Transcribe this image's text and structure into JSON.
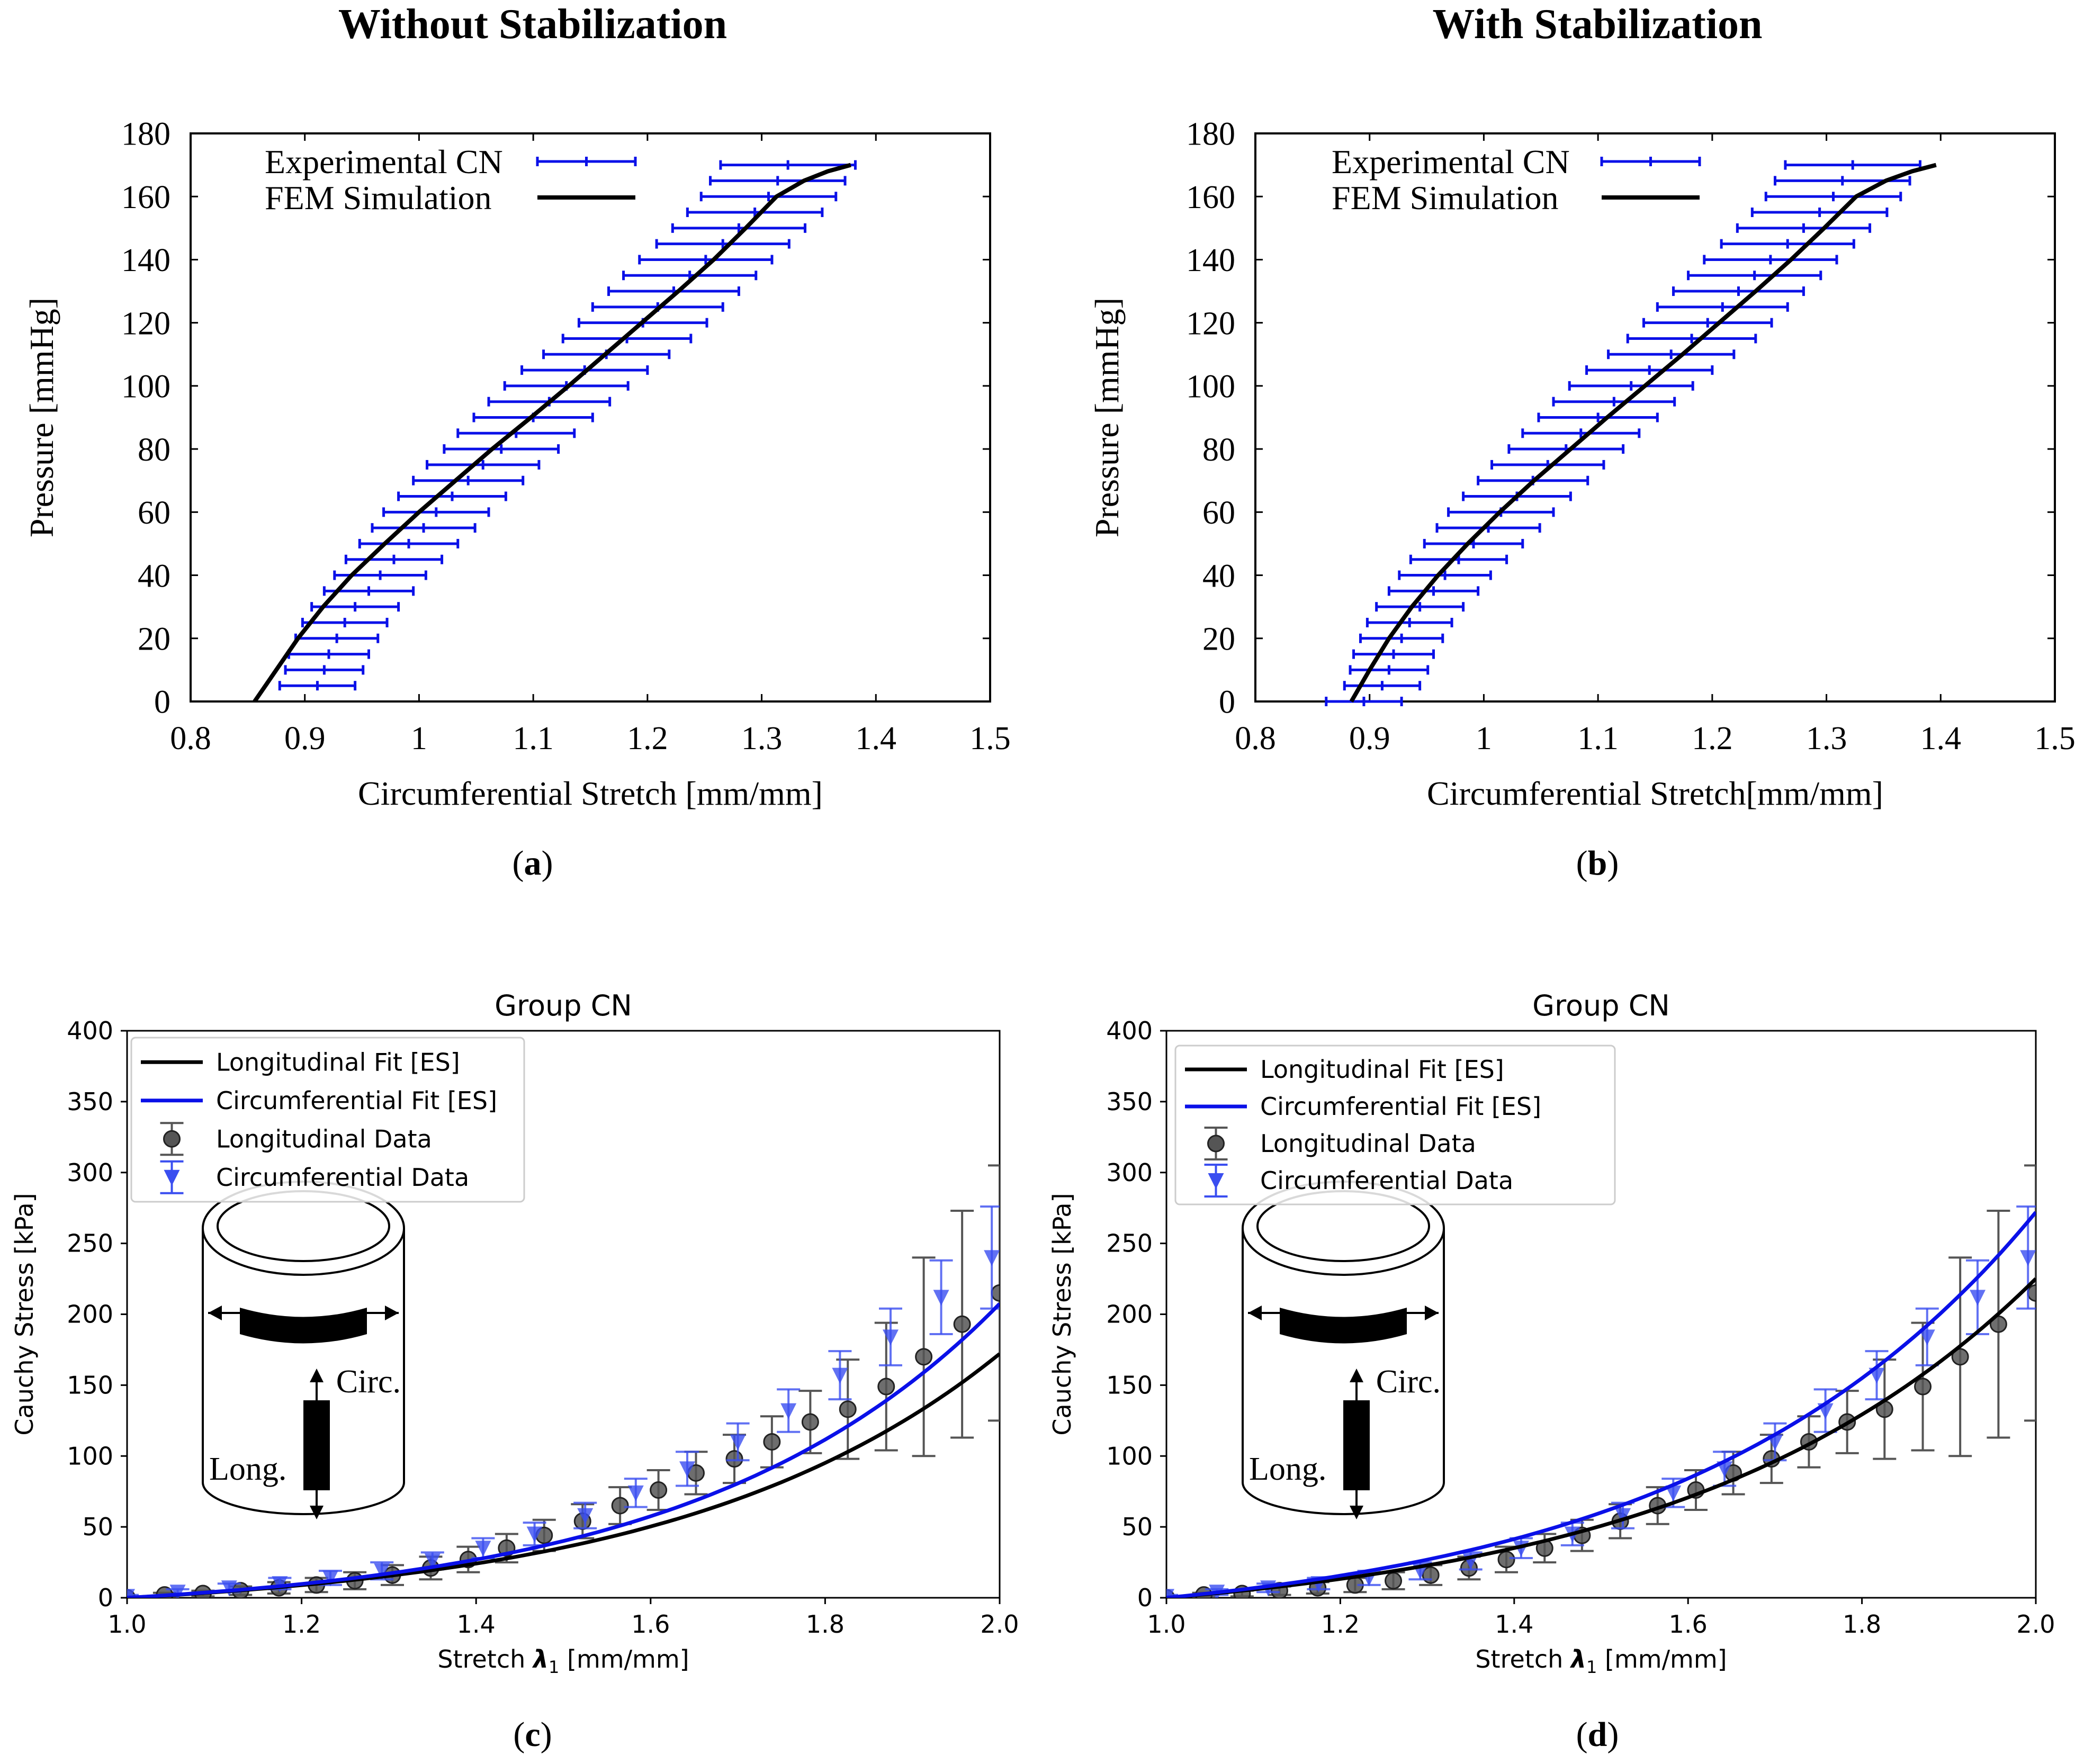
{
  "page": {
    "heading_left": "Without Stabilization",
    "heading_right": "With Stabilization"
  },
  "colors": {
    "experimental": "#0a10e8",
    "fem": "#000000",
    "long_data": "#555555",
    "circ_fit": "#0a10e8",
    "circ_data": "#3a4ef0"
  },
  "chart_data": [
    {
      "id": "a",
      "type": "line",
      "panel_label": "a",
      "xlabel": "Circumferential Stretch  [mm/mm]",
      "ylabel": "Pressure  [mmHg]",
      "xlim": [
        0.8,
        1.5
      ],
      "ylim": [
        0,
        180
      ],
      "xticks": [
        0.8,
        0.9,
        1,
        1.1,
        1.2,
        1.3,
        1.4,
        1.5
      ],
      "yticks": [
        0,
        20,
        40,
        60,
        80,
        100,
        120,
        140,
        160,
        180
      ],
      "xtick_labels": [
        "0.8",
        "0.9",
        "1",
        "1.1",
        "1.2",
        "1.3",
        "1.4",
        "1.5"
      ],
      "ytick_labels": [
        "0",
        "20",
        "40",
        "60",
        "80",
        "100",
        "120",
        "140",
        "160",
        "180"
      ],
      "legend": [
        "Experimental CN",
        "FEM Simulation"
      ],
      "legend_position": "top-left",
      "series": [
        {
          "name": "Experimental CN",
          "kind": "xerrorbar",
          "points": [
            [
              0.911,
              5,
              0.033
            ],
            [
              0.917,
              10,
              0.034
            ],
            [
              0.921,
              15,
              0.035
            ],
            [
              0.928,
              20,
              0.036
            ],
            [
              0.935,
              25,
              0.037
            ],
            [
              0.944,
              30,
              0.038
            ],
            [
              0.956,
              35,
              0.039
            ],
            [
              0.966,
              40,
              0.04
            ],
            [
              0.978,
              45,
              0.042
            ],
            [
              0.991,
              50,
              0.043
            ],
            [
              1.004,
              55,
              0.045
            ],
            [
              1.015,
              60,
              0.046
            ],
            [
              1.029,
              65,
              0.047
            ],
            [
              1.043,
              70,
              0.048
            ],
            [
              1.056,
              75,
              0.049
            ],
            [
              1.072,
              80,
              0.05
            ],
            [
              1.085,
              85,
              0.051
            ],
            [
              1.1,
              90,
              0.052
            ],
            [
              1.114,
              95,
              0.053
            ],
            [
              1.129,
              100,
              0.054
            ],
            [
              1.145,
              105,
              0.055
            ],
            [
              1.164,
              110,
              0.055
            ],
            [
              1.182,
              115,
              0.056
            ],
            [
              1.196,
              120,
              0.056
            ],
            [
              1.209,
              125,
              0.057
            ],
            [
              1.223,
              130,
              0.057
            ],
            [
              1.237,
              135,
              0.058
            ],
            [
              1.251,
              140,
              0.058
            ],
            [
              1.266,
              145,
              0.058
            ],
            [
              1.28,
              150,
              0.058
            ],
            [
              1.294,
              155,
              0.059
            ],
            [
              1.306,
              160,
              0.059
            ],
            [
              1.314,
              165,
              0.059
            ],
            [
              1.323,
              170,
              0.059
            ]
          ]
        },
        {
          "name": "FEM Simulation",
          "kind": "line",
          "x": [
            0.856,
            0.875,
            0.894,
            0.916,
            0.941,
            0.97,
            1.0,
            1.032,
            1.064,
            1.098,
            1.131,
            1.163,
            1.195,
            1.227,
            1.258,
            1.286,
            1.313,
            1.337,
            1.358,
            1.378
          ],
          "y": [
            0,
            10,
            20,
            30,
            40,
            50,
            60,
            70,
            80,
            90,
            100,
            110,
            120,
            130,
            140,
            150,
            160,
            165,
            168,
            170
          ]
        }
      ]
    },
    {
      "id": "b",
      "type": "line",
      "panel_label": "b",
      "xlabel": "Circumferential Stretch[mm/mm]",
      "ylabel": "Pressure  [mmHg]",
      "xlim": [
        0.8,
        1.5
      ],
      "ylim": [
        0,
        180
      ],
      "xticks": [
        0.8,
        0.9,
        1,
        1.1,
        1.2,
        1.3,
        1.4,
        1.5
      ],
      "yticks": [
        0,
        20,
        40,
        60,
        80,
        100,
        120,
        140,
        160,
        180
      ],
      "xtick_labels": [
        "0.8",
        "0.9",
        "1",
        "1.1",
        "1.2",
        "1.3",
        "1.4",
        "1.5"
      ],
      "ytick_labels": [
        "0",
        "20",
        "40",
        "60",
        "80",
        "100",
        "120",
        "140",
        "160",
        "180"
      ],
      "legend": [
        "Experimental CN",
        "FEM Simulation"
      ],
      "legend_position": "top-left",
      "series": [
        {
          "name": "Experimental CN",
          "kind": "xerrorbar",
          "points": [
            [
              0.895,
              0,
              0.033
            ],
            [
              0.911,
              5,
              0.033
            ],
            [
              0.917,
              10,
              0.034
            ],
            [
              0.921,
              15,
              0.035
            ],
            [
              0.928,
              20,
              0.036
            ],
            [
              0.935,
              25,
              0.037
            ],
            [
              0.944,
              30,
              0.038
            ],
            [
              0.956,
              35,
              0.039
            ],
            [
              0.966,
              40,
              0.04
            ],
            [
              0.978,
              45,
              0.042
            ],
            [
              0.991,
              50,
              0.043
            ],
            [
              1.004,
              55,
              0.045
            ],
            [
              1.015,
              60,
              0.046
            ],
            [
              1.029,
              65,
              0.047
            ],
            [
              1.043,
              70,
              0.048
            ],
            [
              1.056,
              75,
              0.049
            ],
            [
              1.072,
              80,
              0.05
            ],
            [
              1.085,
              85,
              0.051
            ],
            [
              1.1,
              90,
              0.052
            ],
            [
              1.114,
              95,
              0.053
            ],
            [
              1.129,
              100,
              0.054
            ],
            [
              1.145,
              105,
              0.055
            ],
            [
              1.164,
              110,
              0.055
            ],
            [
              1.182,
              115,
              0.056
            ],
            [
              1.196,
              120,
              0.056
            ],
            [
              1.209,
              125,
              0.057
            ],
            [
              1.223,
              130,
              0.057
            ],
            [
              1.237,
              135,
              0.058
            ],
            [
              1.251,
              140,
              0.058
            ],
            [
              1.266,
              145,
              0.058
            ],
            [
              1.28,
              150,
              0.058
            ],
            [
              1.294,
              155,
              0.059
            ],
            [
              1.306,
              160,
              0.059
            ],
            [
              1.314,
              165,
              0.059
            ],
            [
              1.323,
              170,
              0.059
            ]
          ]
        },
        {
          "name": "FEM Simulation",
          "kind": "line",
          "x": [
            0.884,
            0.9,
            0.917,
            0.937,
            0.96,
            0.986,
            1.014,
            1.044,
            1.076,
            1.108,
            1.141,
            1.174,
            1.206,
            1.238,
            1.269,
            1.298,
            1.326,
            1.352,
            1.375,
            1.396
          ],
          "y": [
            0,
            10,
            20,
            30,
            40,
            50,
            60,
            70,
            80,
            90,
            100,
            110,
            120,
            130,
            140,
            150,
            160,
            165,
            168,
            170
          ]
        }
      ]
    },
    {
      "id": "c",
      "type": "line",
      "panel_label": "c",
      "title": "Group CN",
      "xlabel_prefix": "Stretch ",
      "xlabel_symbol": "λ",
      "xlabel_sub": "1",
      "xlabel_suffix": " [mm/mm]",
      "ylabel": "Cauchy Stress [kPa]",
      "xlim": [
        1.0,
        2.0
      ],
      "ylim": [
        0,
        400
      ],
      "xticks": [
        1.0,
        1.2,
        1.4,
        1.6,
        1.8,
        2.0
      ],
      "yticks": [
        0,
        50,
        100,
        150,
        200,
        250,
        300,
        350,
        400
      ],
      "xtick_labels": [
        "1.0",
        "1.2",
        "1.4",
        "1.6",
        "1.8",
        "2.0"
      ],
      "ytick_labels": [
        "0",
        "50",
        "100",
        "150",
        "200",
        "250",
        "300",
        "350",
        "400"
      ],
      "legend": [
        "Longitudinal Fit [ES]",
        "Circumferential Fit [ES]",
        "Longitudinal Data",
        "Circumferential Data"
      ],
      "legend_position": "top-left",
      "inset_labels": {
        "circ": "Circ.",
        "long": "Long."
      },
      "series": [
        {
          "name": "Longitudinal Fit [ES]",
          "kind": "curve",
          "a": 12.4,
          "b": 2.7
        },
        {
          "name": "Circumferential Fit [ES]",
          "kind": "curve",
          "a": 12.6,
          "b": 2.86
        },
        {
          "name": "Longitudinal Data",
          "kind": "yerrorbar",
          "x": [
            1.0,
            1.043,
            1.087,
            1.13,
            1.174,
            1.217,
            1.261,
            1.304,
            1.348,
            1.391,
            1.435,
            1.478,
            1.522,
            1.565,
            1.609,
            1.652,
            1.696,
            1.739,
            1.783,
            1.826,
            1.87,
            1.913,
            1.957,
            2.0
          ],
          "y": [
            0,
            2,
            3,
            5,
            7,
            9,
            12,
            16,
            21,
            27,
            35,
            44,
            54,
            65,
            76,
            88,
            98,
            110,
            124,
            133,
            149,
            170,
            193,
            215
          ],
          "err": [
            1,
            1.5,
            2,
            3,
            4,
            5,
            6,
            7,
            8,
            9,
            10,
            11,
            12,
            13,
            14,
            15,
            17,
            18,
            22,
            35,
            45,
            70,
            80,
            90
          ]
        },
        {
          "name": "Circumferential Data",
          "kind": "yerrorbar",
          "x": [
            1.0,
            1.058,
            1.117,
            1.175,
            1.233,
            1.292,
            1.35,
            1.408,
            1.467,
            1.525,
            1.583,
            1.642,
            1.7,
            1.758,
            1.817,
            1.875,
            1.933,
            1.991
          ],
          "y": [
            1,
            4,
            7,
            10,
            14,
            19,
            26,
            35,
            45,
            58,
            74,
            91,
            110,
            132,
            157,
            184,
            212,
            240
          ],
          "err": [
            1,
            2,
            3,
            4,
            5,
            6,
            6,
            7,
            8,
            9,
            10,
            12,
            13,
            15,
            17,
            20,
            26,
            36
          ]
        }
      ]
    },
    {
      "id": "d",
      "type": "line",
      "panel_label": "d",
      "title": "Group CN",
      "xlabel_prefix": "Stretch ",
      "xlabel_symbol": "λ",
      "xlabel_sub": "1",
      "xlabel_suffix": " [mm/mm]",
      "ylabel": "Cauchy Stress [kPa]",
      "xlim": [
        1.0,
        2.0
      ],
      "ylim": [
        0,
        400
      ],
      "xticks": [
        1.0,
        1.2,
        1.4,
        1.6,
        1.8,
        2.0
      ],
      "yticks": [
        0,
        50,
        100,
        150,
        200,
        250,
        300,
        350,
        400
      ],
      "xtick_labels": [
        "1.0",
        "1.2",
        "1.4",
        "1.6",
        "1.8",
        "2.0"
      ],
      "ytick_labels": [
        "0",
        "50",
        "100",
        "150",
        "200",
        "250",
        "300",
        "350",
        "400"
      ],
      "legend": [
        "Longitudinal Fit [ES]",
        "Circumferential Fit [ES]",
        "Longitudinal Data",
        "Circumferential Data"
      ],
      "legend_position": "top-left",
      "inset_labels": {
        "circ": "Circ.",
        "long": "Long."
      },
      "series": [
        {
          "name": "Longitudinal Fit [ES]",
          "kind": "curve",
          "a": 20.8,
          "b": 2.47
        },
        {
          "name": "Circumferential Fit [ES]",
          "kind": "curve",
          "a": 23.8,
          "b": 2.52
        },
        {
          "name": "Longitudinal Data",
          "kind": "yerrorbar",
          "x": [
            1.0,
            1.043,
            1.087,
            1.13,
            1.174,
            1.217,
            1.261,
            1.304,
            1.348,
            1.391,
            1.435,
            1.478,
            1.522,
            1.565,
            1.609,
            1.652,
            1.696,
            1.739,
            1.783,
            1.826,
            1.87,
            1.913,
            1.957,
            2.0
          ],
          "y": [
            0,
            2,
            3,
            5,
            7,
            9,
            12,
            16,
            21,
            27,
            35,
            44,
            54,
            65,
            76,
            88,
            98,
            110,
            124,
            133,
            149,
            170,
            193,
            215
          ],
          "err": [
            1,
            1.5,
            2,
            3,
            4,
            5,
            6,
            7,
            8,
            9,
            10,
            11,
            12,
            13,
            14,
            15,
            17,
            18,
            22,
            35,
            45,
            70,
            80,
            90
          ]
        },
        {
          "name": "Circumferential Data",
          "kind": "yerrorbar",
          "x": [
            1.0,
            1.058,
            1.117,
            1.175,
            1.233,
            1.292,
            1.35,
            1.408,
            1.467,
            1.525,
            1.583,
            1.642,
            1.7,
            1.758,
            1.817,
            1.875,
            1.933,
            1.991
          ],
          "y": [
            1,
            4,
            7,
            10,
            14,
            19,
            26,
            35,
            45,
            58,
            74,
            91,
            110,
            132,
            157,
            184,
            212,
            240
          ],
          "err": [
            1,
            2,
            3,
            4,
            5,
            6,
            6,
            7,
            8,
            9,
            10,
            12,
            13,
            15,
            17,
            20,
            26,
            36
          ]
        }
      ]
    }
  ]
}
